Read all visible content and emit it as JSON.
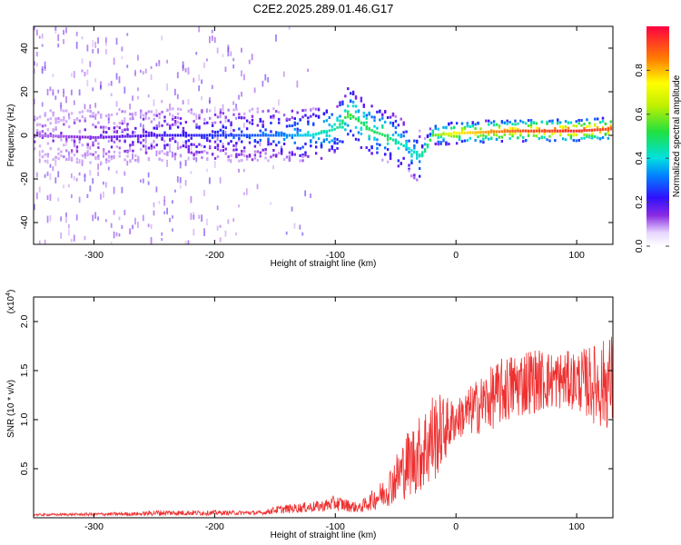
{
  "chart_data": [
    {
      "type": "heatmap",
      "title": "C2E2.2025.289.01.46.G17",
      "xlabel": "Height of straight line (km)",
      "ylabel": "Frequency (Hz)",
      "xlim": [
        -350,
        130
      ],
      "ylim": [
        -50,
        50
      ],
      "xticks": [
        -300,
        -200,
        -100,
        0,
        100
      ],
      "xtick_labels": [
        "-300",
        "-200",
        "-100",
        "0",
        "100"
      ],
      "yticks": [
        -40,
        -20,
        0,
        20,
        40
      ],
      "ytick_labels": [
        "-40",
        "-20",
        "0",
        "20",
        "40"
      ],
      "colorbar": {
        "label": "Normalized spectral amplitude",
        "range": [
          0,
          1
        ],
        "ticks": [
          0.0,
          0.2,
          0.4,
          0.6,
          0.8
        ],
        "tick_labels": [
          "0.0",
          "0.2",
          "0.4",
          "0.6",
          "0.8"
        ]
      },
      "ridge": {
        "description": "dominant frequency line",
        "x": [
          -350,
          -300,
          -250,
          -200,
          -150,
          -120,
          -100,
          -90,
          -80,
          -70,
          -60,
          -50,
          -40,
          -30,
          -20,
          0,
          50,
          100,
          130
        ],
        "y": [
          0,
          -1,
          0,
          0,
          0,
          0,
          3,
          10,
          6,
          2,
          0,
          -3,
          -6,
          -10,
          0,
          1,
          2,
          2,
          3
        ],
        "amplitude": [
          0.1,
          0.15,
          0.2,
          0.25,
          0.3,
          0.4,
          0.45,
          0.55,
          0.5,
          0.5,
          0.5,
          0.45,
          0.4,
          0.45,
          0.55,
          0.75,
          0.9,
          0.95,
          0.9
        ]
      }
    },
    {
      "type": "line",
      "xlabel": "Height of straight line (km)",
      "ylabel": "SNR (10 * v/v)",
      "y_multiplier": "(x10",
      "y_multiplier_exp": "4",
      "y_multiplier_close": ")",
      "xlim": [
        -350,
        130
      ],
      "ylim": [
        0,
        2.25
      ],
      "xticks": [
        -300,
        -200,
        -100,
        0,
        100
      ],
      "xtick_labels": [
        "-300",
        "-200",
        "-100",
        "0",
        "100"
      ],
      "yticks": [
        0.5,
        1.0,
        1.5,
        2.0
      ],
      "ytick_labels": [
        "0.5",
        "1.0",
        "1.5",
        "2.0"
      ],
      "line_color": "#ee3030",
      "envelope": {
        "x": [
          -350,
          -260,
          -250,
          -160,
          -150,
          -110,
          -100,
          -80,
          -60,
          -50,
          -40,
          -30,
          -20,
          -10,
          0,
          20,
          40,
          60,
          80,
          100,
          120,
          130
        ],
        "mean": [
          0.03,
          0.04,
          0.05,
          0.05,
          0.08,
          0.12,
          0.15,
          0.1,
          0.25,
          0.4,
          0.55,
          0.65,
          0.8,
          0.9,
          1.0,
          1.15,
          1.3,
          1.4,
          1.4,
          1.4,
          1.35,
          1.4
        ],
        "spread": [
          0.01,
          0.02,
          0.03,
          0.02,
          0.04,
          0.06,
          0.08,
          0.05,
          0.15,
          0.25,
          0.35,
          0.4,
          0.5,
          0.35,
          0.2,
          0.3,
          0.35,
          0.35,
          0.3,
          0.3,
          0.45,
          0.5
        ]
      }
    }
  ]
}
